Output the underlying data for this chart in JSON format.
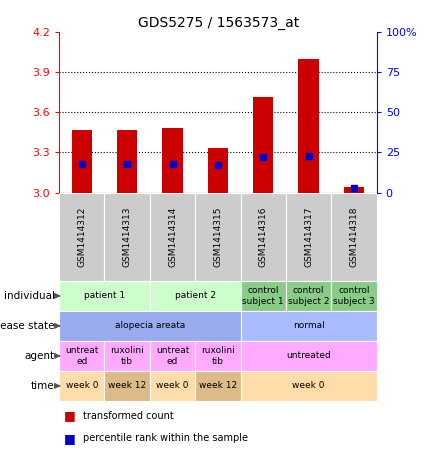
{
  "title": "GDS5275 / 1563573_at",
  "samples": [
    "GSM1414312",
    "GSM1414313",
    "GSM1414314",
    "GSM1414315",
    "GSM1414316",
    "GSM1414317",
    "GSM1414318"
  ],
  "bar_values": [
    3.47,
    3.47,
    3.48,
    3.33,
    3.71,
    4.0,
    3.04
  ],
  "bar_base": 3.0,
  "percentile_values": [
    18,
    18,
    18,
    17,
    22,
    23,
    3
  ],
  "ylim_left": [
    3.0,
    4.2
  ],
  "ylim_right": [
    0,
    100
  ],
  "yticks_left": [
    3.0,
    3.3,
    3.6,
    3.9,
    4.2
  ],
  "yticks_right": [
    0,
    25,
    50,
    75,
    100
  ],
  "bar_color": "#cc0000",
  "dot_color": "#0000cc",
  "background_color": "#ffffff",
  "rows": [
    {
      "key": "individual",
      "label": "individual",
      "segments": [
        {
          "cols": [
            0,
            1
          ],
          "text": "patient 1",
          "color": "#ccffcc"
        },
        {
          "cols": [
            2,
            3
          ],
          "text": "patient 2",
          "color": "#ccffcc"
        },
        {
          "cols": [
            4
          ],
          "text": "control\nsubject 1",
          "color": "#88cc88"
        },
        {
          "cols": [
            5
          ],
          "text": "control\nsubject 2",
          "color": "#88cc88"
        },
        {
          "cols": [
            6
          ],
          "text": "control\nsubject 3",
          "color": "#88cc88"
        }
      ]
    },
    {
      "key": "disease_state",
      "label": "disease state",
      "segments": [
        {
          "cols": [
            0,
            1,
            2,
            3
          ],
          "text": "alopecia areata",
          "color": "#99aaee"
        },
        {
          "cols": [
            4,
            5,
            6
          ],
          "text": "normal",
          "color": "#aabbff"
        }
      ]
    },
    {
      "key": "agent",
      "label": "agent",
      "segments": [
        {
          "cols": [
            0
          ],
          "text": "untreat\ned",
          "color": "#ffaaff"
        },
        {
          "cols": [
            1
          ],
          "text": "ruxolini\ntib",
          "color": "#ffaaff"
        },
        {
          "cols": [
            2
          ],
          "text": "untreat\ned",
          "color": "#ffaaff"
        },
        {
          "cols": [
            3
          ],
          "text": "ruxolini\ntib",
          "color": "#ffaaff"
        },
        {
          "cols": [
            4,
            5,
            6
          ],
          "text": "untreated",
          "color": "#ffaaff"
        }
      ]
    },
    {
      "key": "time",
      "label": "time",
      "segments": [
        {
          "cols": [
            0
          ],
          "text": "week 0",
          "color": "#ffddaa"
        },
        {
          "cols": [
            1
          ],
          "text": "week 12",
          "color": "#ddbb88"
        },
        {
          "cols": [
            2
          ],
          "text": "week 0",
          "color": "#ffddaa"
        },
        {
          "cols": [
            3
          ],
          "text": "week 12",
          "color": "#ddbb88"
        },
        {
          "cols": [
            4,
            5,
            6
          ],
          "text": "week 0",
          "color": "#ffddaa"
        }
      ]
    }
  ],
  "legend": [
    {
      "color": "#cc0000",
      "label": "transformed count"
    },
    {
      "color": "#0000cc",
      "label": "percentile rank within the sample"
    }
  ]
}
